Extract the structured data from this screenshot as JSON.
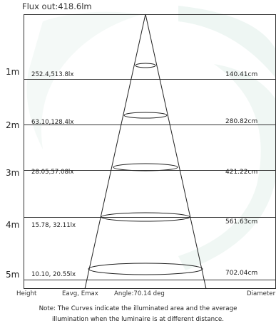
{
  "diagram": {
    "flux_label": "Flux out:418.6lm",
    "rows": [
      {
        "distance": "1m",
        "illuminance": "252.4,513.8lx",
        "diameter": "140.41cm"
      },
      {
        "distance": "2m",
        "illuminance": "63.10,128.4lx",
        "diameter": "280.82cm"
      },
      {
        "distance": "3m",
        "illuminance": "28.05,57.08lx",
        "diameter": "421.22cm"
      },
      {
        "distance": "4m",
        "illuminance": "15.78, 32.11lx",
        "diameter": "561.63cm"
      },
      {
        "distance": "5m",
        "illuminance": "10.10, 20.55lx",
        "diameter": "702.04cm"
      }
    ],
    "footer": {
      "height": "Height",
      "eavg_emax": "Eavg, Emax",
      "angle": "Angle:70.14 deg",
      "diameter": "Diameter"
    },
    "note": {
      "line1": "Note: The Curves indicate the illuminated area and the average",
      "line2": "illumination when the luminaire is at different distance."
    }
  }
}
